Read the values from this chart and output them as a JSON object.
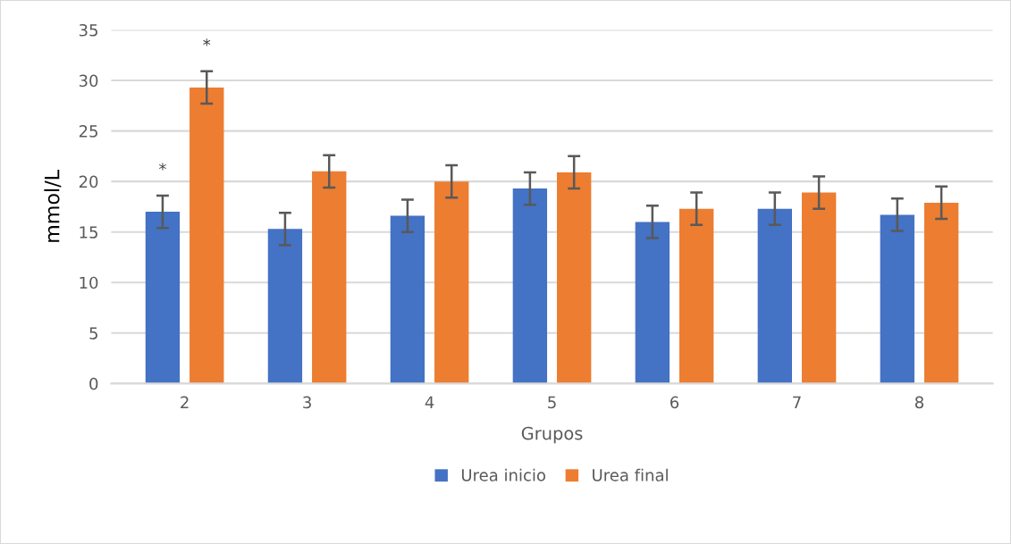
{
  "chart_data": {
    "type": "bar",
    "xlabel": "Grupos",
    "ylabel": "mmol/L",
    "categories": [
      "2",
      "3",
      "4",
      "5",
      "6",
      "7",
      "8"
    ],
    "series": [
      {
        "name": "Urea inicio",
        "color": "#4472c4",
        "values": [
          17.0,
          15.3,
          16.6,
          19.3,
          16.0,
          17.3,
          16.7
        ],
        "errors": [
          1.6,
          1.6,
          1.6,
          1.6,
          1.6,
          1.6,
          1.6
        ]
      },
      {
        "name": "Urea final",
        "color": "#ed7d31",
        "values": [
          29.3,
          21.0,
          20.0,
          20.9,
          17.3,
          18.9,
          17.9
        ],
        "errors": [
          1.6,
          1.6,
          1.6,
          1.6,
          1.6,
          1.6,
          1.6
        ]
      }
    ],
    "annotations": [
      "*",
      "*"
    ],
    "ylim": [
      0,
      35
    ],
    "yticks": [
      0,
      5,
      10,
      15,
      20,
      25,
      30,
      35
    ],
    "grid": "y",
    "legend": "bottom"
  }
}
